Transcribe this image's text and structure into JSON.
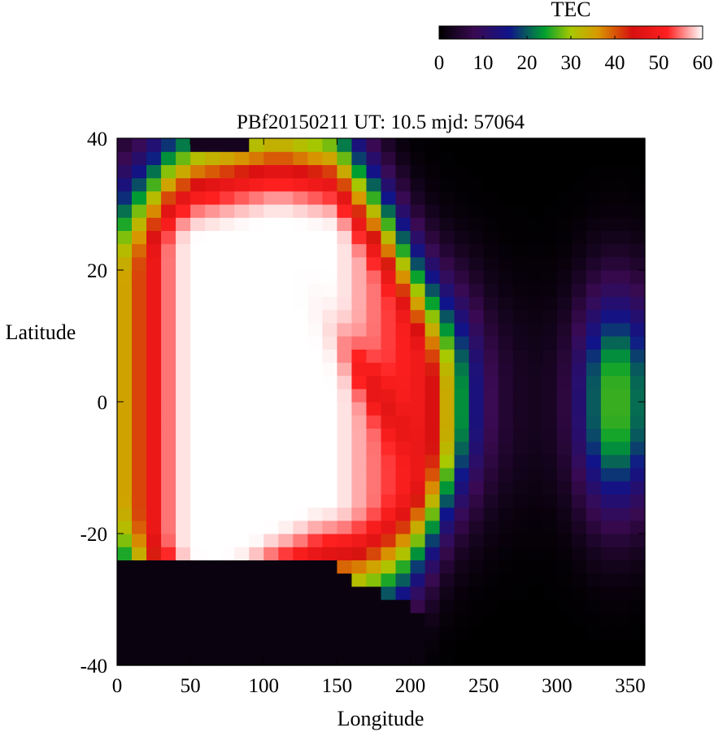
{
  "chart_data": {
    "type": "heatmap",
    "title": "PBf20150211  UT: 10.5  mjd: 57064",
    "xlabel": "Longitude",
    "ylabel": "Latitude",
    "xlim": [
      0,
      360
    ],
    "ylim": [
      -40,
      40
    ],
    "x_ticks": [
      "0",
      "50",
      "100",
      "150",
      "200",
      "250",
      "300",
      "350"
    ],
    "y_ticks": [
      "-40",
      "-20",
      "0",
      "20",
      "40"
    ],
    "grid": false,
    "cell_size": {
      "lon": 10,
      "lat": 2
    },
    "colorbar": {
      "label": "TEC",
      "range": [
        0,
        60
      ],
      "ticks": [
        "0",
        "10",
        "20",
        "30",
        "40",
        "50",
        "60"
      ],
      "stops": [
        {
          "value": 0,
          "color": "#000000"
        },
        {
          "value": 8,
          "color": "#3a0a52"
        },
        {
          "value": 16,
          "color": "#10148a"
        },
        {
          "value": 24,
          "color": "#00a030"
        },
        {
          "value": 30,
          "color": "#a8c800"
        },
        {
          "value": 36,
          "color": "#d89a00"
        },
        {
          "value": 44,
          "color": "#d81010"
        },
        {
          "value": 52,
          "color": "#ff2020"
        },
        {
          "value": 60,
          "color": "#ffffff"
        }
      ]
    },
    "features": {
      "crest": {
        "lon": [
          0,
          10,
          20,
          30,
          40,
          50,
          60,
          70,
          80,
          90,
          100,
          110,
          120,
          130,
          140,
          150,
          160,
          170,
          180,
          190,
          200,
          210,
          220,
          230,
          240,
          250,
          260,
          270,
          280,
          290,
          300,
          310,
          320,
          330,
          340,
          350,
          360
        ],
        "north": [
          17,
          19,
          20,
          22,
          23,
          24,
          25,
          25,
          26,
          26,
          27,
          27,
          27,
          26,
          26,
          25,
          22,
          19,
          16,
          12,
          8,
          4,
          2,
          1,
          0,
          0,
          0,
          0,
          0,
          0,
          0,
          0,
          0,
          0,
          0,
          0,
          0
        ],
        "south": [
          -13,
          -15,
          -17,
          -19,
          -20,
          -22,
          -23,
          -23,
          -22,
          -21,
          -19,
          -18,
          -17,
          -16,
          -15,
          -15,
          -15,
          -15,
          -14,
          -13,
          -11,
          -8,
          -5,
          -2,
          0,
          0,
          0,
          0,
          0,
          0,
          0,
          0,
          0,
          0,
          0,
          0,
          0
        ],
        "peak": [
          32,
          38,
          44,
          52,
          58,
          60,
          60,
          60,
          60,
          60,
          60,
          60,
          60,
          60,
          60,
          60,
          58,
          56,
          54,
          52,
          50,
          48,
          40,
          28,
          18,
          10,
          6,
          4,
          3,
          3,
          4,
          8,
          16,
          24,
          28,
          24,
          18
        ]
      },
      "inner_tongue": {
        "lon_center": 175,
        "lat_center": 2,
        "lat_slope": -0.3,
        "depth": 8
      },
      "north_dark_lobe": {
        "lon_center": 280,
        "lon_width": 62,
        "lat_floor": 26
      },
      "south_dark_lobe": {
        "lon_min": 0,
        "lon_max": 230,
        "lat_ceiling": -24
      },
      "southeast_dark_corner": {
        "lon_min": 330,
        "lat_ceiling": -30
      },
      "northwest_dark_corner": {
        "lon_min": 50,
        "lon_max": 90,
        "lat_floor": 38
      }
    }
  }
}
